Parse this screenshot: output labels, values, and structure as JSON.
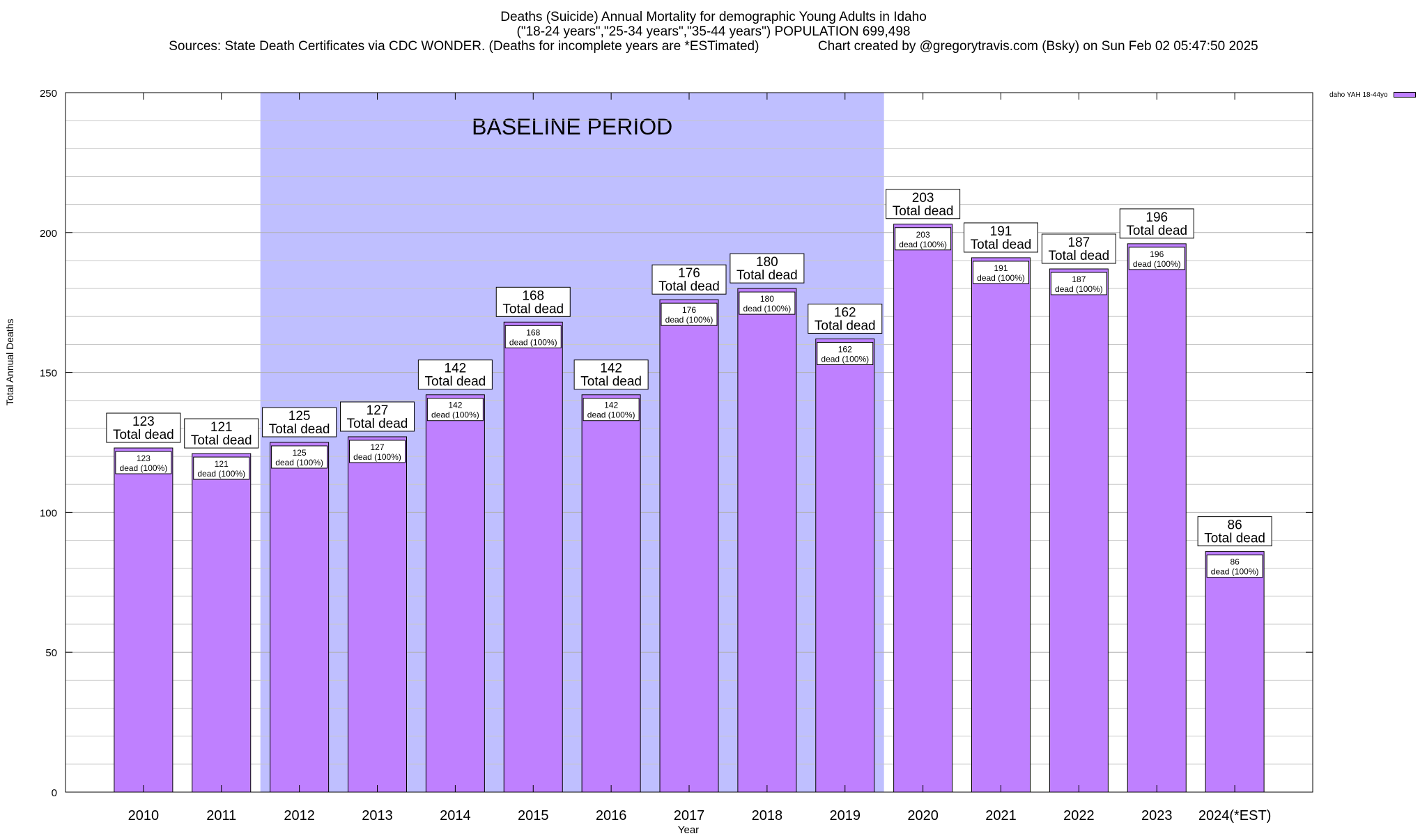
{
  "chart_data": {
    "type": "bar",
    "title": "Deaths (Suicide) Annual Mortality for demographic Young Adults in Idaho",
    "subtitle": "(\"18-24 years\",\"25-34 years\",\"35-44 years\") POPULATION 699,498",
    "sources": "Sources: State Death Certificates via CDC WONDER. (Deaths for incomplete years are *ESTimated)",
    "credit": "Chart created by @gregorytravis.com (Bsky) on Sun Feb 02 05:47:50 2025",
    "xlabel": "Year",
    "ylabel": "Total Annual Deaths",
    "ylim": [
      0,
      250
    ],
    "yticks": [
      0,
      50,
      100,
      150,
      200,
      250
    ],
    "categories": [
      "2010",
      "2011",
      "2012",
      "2013",
      "2014",
      "2015",
      "2016",
      "2017",
      "2018",
      "2019",
      "2020",
      "2021",
      "2022",
      "2023",
      "2024(*EST)"
    ],
    "series": [
      {
        "name": "daho YAH 18-44yo",
        "values": [
          123,
          121,
          125,
          127,
          142,
          168,
          142,
          176,
          180,
          162,
          203,
          191,
          187,
          196,
          86
        ],
        "color": "#bf80ff"
      }
    ],
    "top_label_suffix": "Total dead",
    "inner_label_suffix": "dead (100%)",
    "baseline": {
      "label": "BASELINE PERIOD",
      "start_category": "2012",
      "end_category": "2019",
      "color": "#bfbfff"
    },
    "legend_position": "top-right",
    "grid": true
  }
}
